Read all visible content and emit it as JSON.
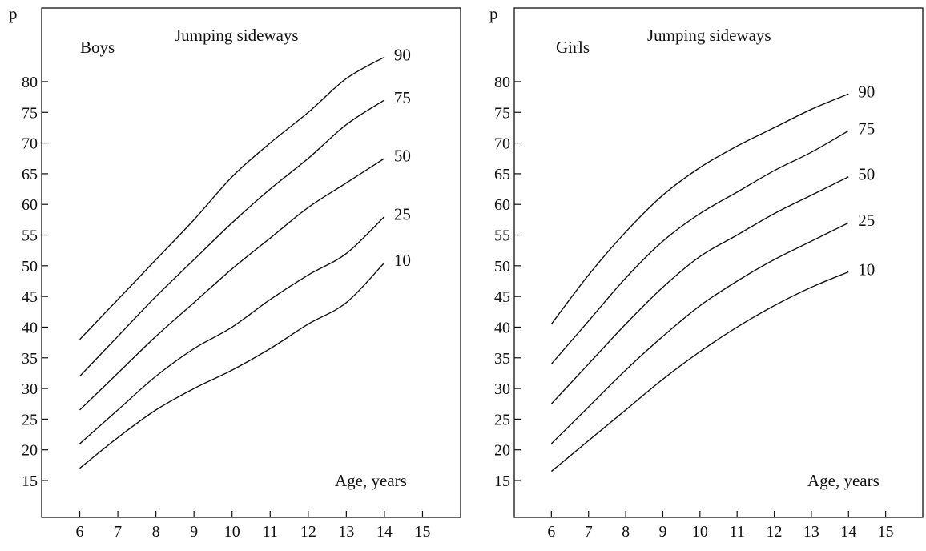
{
  "chart_data": [
    {
      "type": "line",
      "title": "Jumping sideways",
      "group_label": "Boys",
      "ylabel": "p",
      "xlabel": "Age, years",
      "x_ticks": [
        6,
        7,
        8,
        9,
        10,
        11,
        12,
        13,
        14,
        15
      ],
      "y_ticks": [
        15,
        20,
        25,
        30,
        35,
        40,
        45,
        50,
        55,
        60,
        65,
        70,
        75,
        80
      ],
      "xlim": [
        5,
        16
      ],
      "ylim": [
        9,
        92
      ],
      "x": [
        6,
        7,
        8,
        9,
        10,
        11,
        12,
        13,
        14
      ],
      "series": [
        {
          "name": "90",
          "values": [
            38,
            44.5,
            51,
            57.5,
            64.5,
            70,
            75,
            80.5,
            84
          ]
        },
        {
          "name": "75",
          "values": [
            32,
            38.5,
            45,
            51,
            57,
            62.5,
            67.5,
            73,
            77
          ]
        },
        {
          "name": "50",
          "values": [
            26.5,
            32.5,
            38.5,
            44,
            49.5,
            54.5,
            59.5,
            63.5,
            67.5
          ]
        },
        {
          "name": "25",
          "values": [
            21,
            26.5,
            32,
            36.5,
            40,
            44.5,
            48.5,
            52,
            58
          ]
        },
        {
          "name": "10",
          "values": [
            17,
            22,
            26.5,
            30,
            33,
            36.5,
            40.5,
            44,
            50.5
          ]
        }
      ]
    },
    {
      "type": "line",
      "title": "Jumping sideways",
      "group_label": "Girls",
      "ylabel": "p",
      "xlabel": "Age, years",
      "x_ticks": [
        6,
        7,
        8,
        9,
        10,
        11,
        12,
        13,
        14,
        15
      ],
      "y_ticks": [
        15,
        20,
        25,
        30,
        35,
        40,
        45,
        50,
        55,
        60,
        65,
        70,
        75,
        80
      ],
      "xlim": [
        5,
        16
      ],
      "ylim": [
        9,
        92
      ],
      "x": [
        6,
        7,
        8,
        9,
        10,
        11,
        12,
        13,
        14
      ],
      "series": [
        {
          "name": "90",
          "values": [
            40.5,
            48.5,
            55.5,
            61.5,
            66,
            69.5,
            72.5,
            75.5,
            78
          ]
        },
        {
          "name": "75",
          "values": [
            34,
            41,
            48,
            54,
            58.5,
            62,
            65.5,
            68.5,
            72
          ]
        },
        {
          "name": "50",
          "values": [
            27.5,
            34,
            40.5,
            46.5,
            51.5,
            55,
            58.5,
            61.5,
            64.5
          ]
        },
        {
          "name": "25",
          "values": [
            21,
            27,
            33,
            38.5,
            43.5,
            47.5,
            51,
            54,
            57
          ]
        },
        {
          "name": "10",
          "values": [
            16.5,
            21.5,
            26.5,
            31.5,
            36,
            40,
            43.5,
            46.5,
            49
          ]
        }
      ]
    }
  ]
}
